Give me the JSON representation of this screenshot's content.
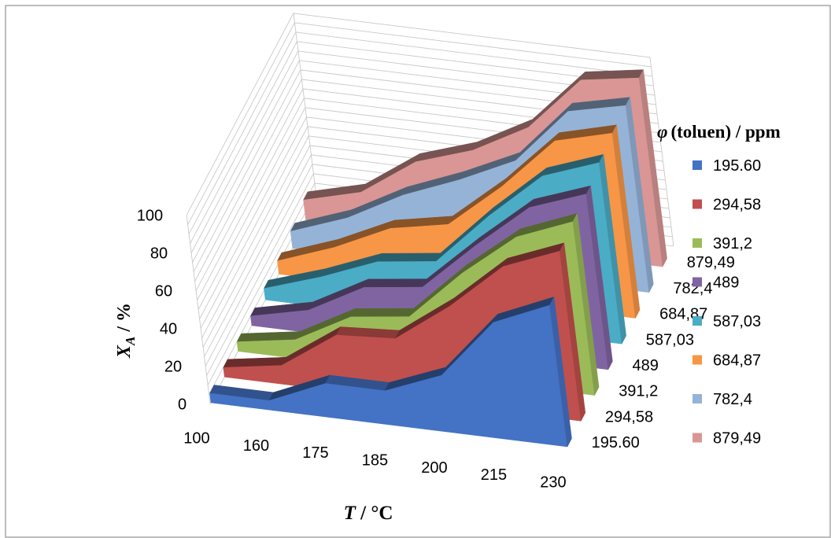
{
  "chart_data": {
    "type": "area",
    "variant": "3d-area",
    "title": "",
    "xlabel": {
      "symbol": "T",
      "unit": " / °C"
    },
    "ylabel": {
      "symbol": "X",
      "subscript": "A",
      "unit": " / %"
    },
    "zlabel": "",
    "categories": [
      "100",
      "160",
      "175",
      "185",
      "200",
      "215",
      "230"
    ],
    "y_ticks": [
      "0",
      "20",
      "40",
      "60",
      "80",
      "100"
    ],
    "ylim": [
      0,
      100
    ],
    "depth_labels": [
      "195.60",
      "294,58",
      "391,2",
      "489",
      "587,03",
      "684,87",
      "782,4",
      "879,49"
    ],
    "legend": {
      "title_symbol": "φ",
      "title_text": "(toluen) / ppm",
      "position": "right"
    },
    "grid": true,
    "series": [
      {
        "name": "195.60",
        "color": "#4472C4",
        "values": [
          5,
          5,
          18,
          18,
          30,
          62,
          75
        ]
      },
      {
        "name": "294,58",
        "color": "#C0504D",
        "values": [
          5,
          10,
          30,
          32,
          53,
          78,
          90
        ]
      },
      {
        "name": "391,2",
        "color": "#9BBB59",
        "values": [
          5,
          10,
          26,
          30,
          57,
          80,
          92
        ]
      },
      {
        "name": "489",
        "color": "#8064A2",
        "values": [
          5,
          12,
          28,
          32,
          58,
          82,
          93
        ]
      },
      {
        "name": "587,03",
        "color": "#4BACC6",
        "values": [
          6,
          16,
          28,
          32,
          60,
          85,
          96
        ]
      },
      {
        "name": "684,87",
        "color": "#F79646",
        "values": [
          7,
          18,
          32,
          38,
          62,
          90,
          98
        ]
      },
      {
        "name": "782,4",
        "color": "#95B3D7",
        "values": [
          9,
          20,
          36,
          48,
          62,
          92,
          99
        ]
      },
      {
        "name": "879,49",
        "color": "#D99694",
        "values": [
          12,
          20,
          40,
          50,
          66,
          95,
          100
        ]
      }
    ]
  }
}
